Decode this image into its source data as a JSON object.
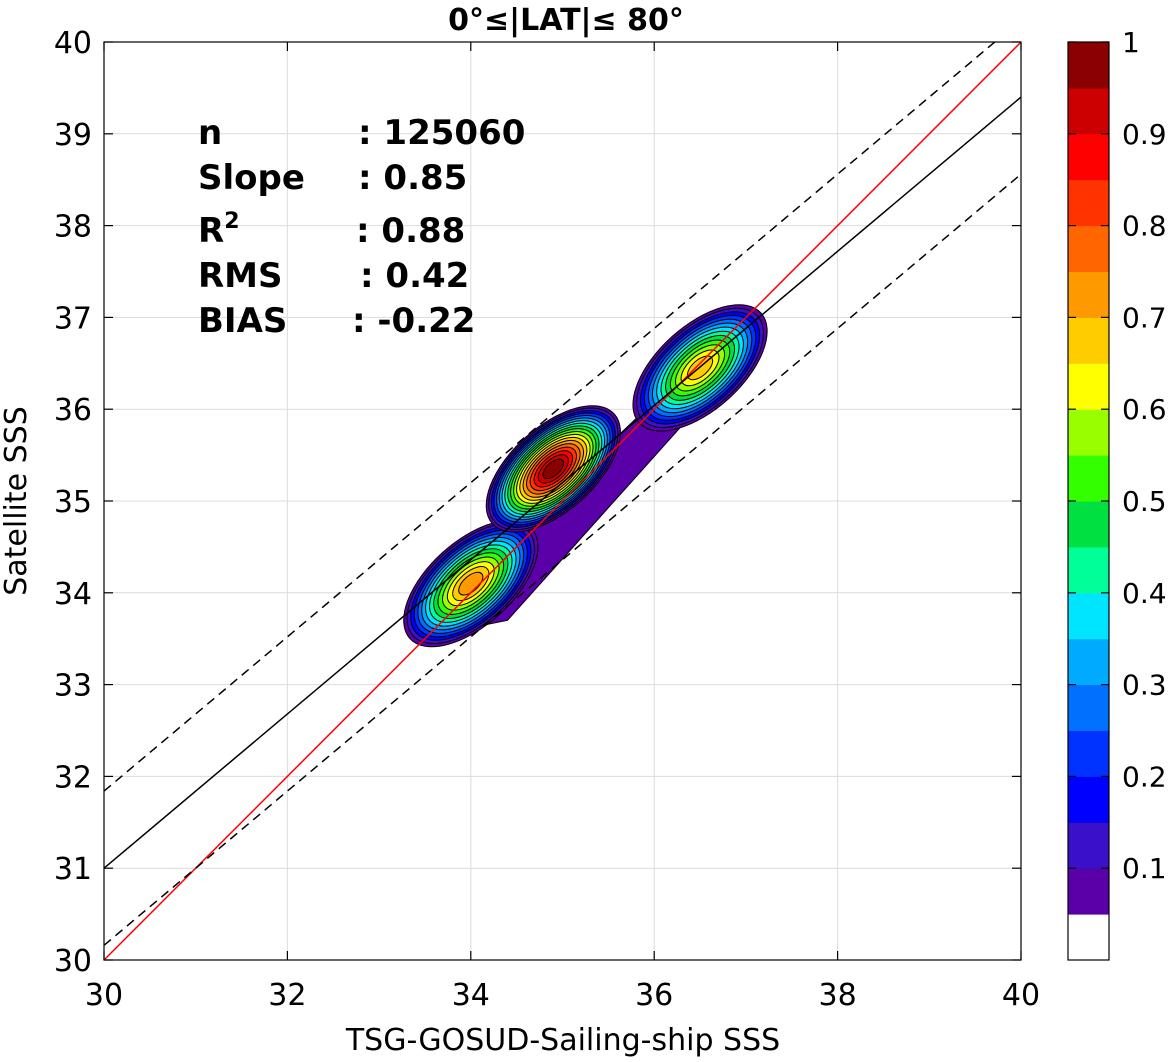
{
  "chart_data": {
    "type": "contour",
    "title": "0°≤|LAT|≤ 80°",
    "xlabel": "TSG-GOSUD-Sailing-ship SSS",
    "ylabel": "Satellite SSS",
    "xlim": [
      30,
      40
    ],
    "ylim": [
      30,
      40
    ],
    "xticks": [
      30,
      32,
      34,
      36,
      38,
      40
    ],
    "yticks": [
      30,
      31,
      32,
      33,
      34,
      35,
      36,
      37,
      38,
      39,
      40
    ],
    "grid": true,
    "stats": [
      {
        "label": "n",
        "value": ": 125060"
      },
      {
        "label": "Slope",
        "value": ": 0.85"
      },
      {
        "label": "R",
        "sup": "2",
        "value": ": 0.88"
      },
      {
        "label": "RMS",
        "value": ": 0.42"
      },
      {
        "label": "BIAS",
        "value": ": -0.22"
      }
    ],
    "lines": [
      {
        "name": "identity",
        "color": "#ff0000",
        "dash": "solid",
        "points": [
          [
            30,
            30
          ],
          [
            40,
            40
          ]
        ]
      },
      {
        "name": "regression",
        "color": "#000000",
        "dash": "solid",
        "points": [
          [
            30,
            31.0
          ],
          [
            40,
            39.4
          ]
        ]
      },
      {
        "name": "upper-bound",
        "color": "#000000",
        "dash": "dashed",
        "points": [
          [
            30,
            31.84
          ],
          [
            40,
            40.24
          ]
        ]
      },
      {
        "name": "lower-bound",
        "color": "#000000",
        "dash": "dashed",
        "points": [
          [
            30,
            30.16
          ],
          [
            40,
            38.56
          ]
        ]
      }
    ],
    "density_peaks": [
      {
        "x": 34.0,
        "y": 34.1,
        "peak": 0.75
      },
      {
        "x": 34.9,
        "y": 35.35,
        "peak": 1.0
      },
      {
        "x": 36.5,
        "y": 36.45,
        "peak": 0.7
      }
    ],
    "colorbar": {
      "range": [
        0,
        1
      ],
      "ticks": [
        0.1,
        0.2,
        0.3,
        0.4,
        0.5,
        0.6,
        0.7,
        0.8,
        0.9,
        1
      ],
      "tick_labels": [
        "0.1",
        "0.2",
        "0.3",
        "0.4",
        "0.5",
        "0.6",
        "0.7",
        "0.8",
        "0.9",
        "1"
      ],
      "colors": [
        "#ffffff",
        "#5a00a8",
        "#3a10c8",
        "#0000ff",
        "#0033ff",
        "#0070ff",
        "#00aaff",
        "#00e5ff",
        "#00ff99",
        "#00e040",
        "#33ff00",
        "#99ff00",
        "#ffff00",
        "#ffcc00",
        "#ff9900",
        "#ff6600",
        "#ff3300",
        "#ff0000",
        "#cc0000",
        "#8b0000"
      ]
    }
  }
}
